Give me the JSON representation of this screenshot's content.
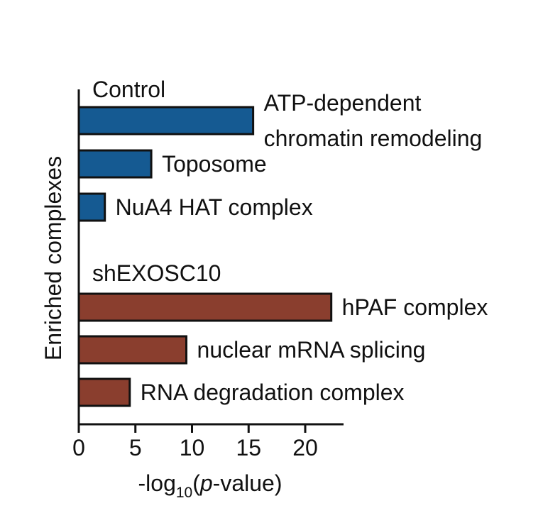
{
  "chart_data": {
    "type": "bar",
    "orientation": "horizontal",
    "xlabel": {
      "prefix": "-log",
      "subscript": "10",
      "middle": "(",
      "italic": "p",
      "suffix": "-value)"
    },
    "ylabel": "Enriched complexes",
    "xlim": [
      0,
      23.5
    ],
    "xticks": [
      0,
      5,
      10,
      15,
      20
    ],
    "groups": [
      {
        "name": "Control",
        "color": "#155a92",
        "bars": [
          {
            "label_lines": [
              "ATP-dependent",
              "chromatin remodeling"
            ],
            "value": 15.4
          },
          {
            "label_lines": [
              "Toposome"
            ],
            "value": 6.4
          },
          {
            "label_lines": [
              "NuA4 HAT complex"
            ],
            "value": 2.3
          }
        ]
      },
      {
        "name": "shEXOSC10",
        "color": "#8a3e2e",
        "bars": [
          {
            "label_lines": [
              "hPAF complex"
            ],
            "value": 22.3
          },
          {
            "label_lines": [
              "nuclear mRNA splicing"
            ],
            "value": 9.5
          },
          {
            "label_lines": [
              "RNA degradation complex"
            ],
            "value": 4.5
          }
        ]
      }
    ],
    "grid": false,
    "legend": "none"
  }
}
